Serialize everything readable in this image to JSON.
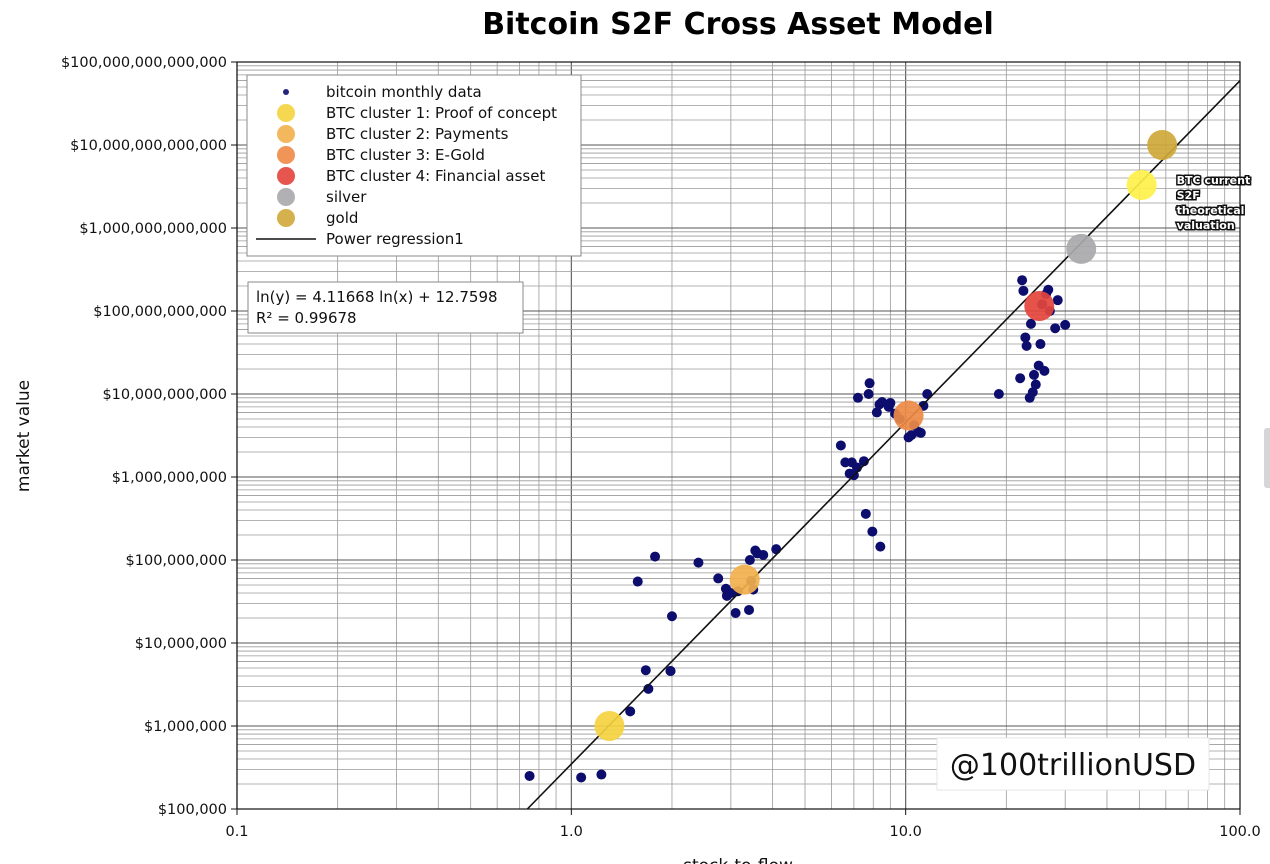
{
  "chart_data": {
    "type": "scatter",
    "title": "Bitcoin S2F Cross Asset Model",
    "xlabel": "stock-to-flow",
    "ylabel": "market value",
    "xscale": "log",
    "yscale": "log",
    "xlim": [
      0.1,
      100
    ],
    "ylim": [
      100000,
      100000000000000
    ],
    "grid": true,
    "x_ticks": [
      {
        "value": 0.1,
        "label": "0.1"
      },
      {
        "value": 1,
        "label": "1.0"
      },
      {
        "value": 10,
        "label": "10.0"
      },
      {
        "value": 100,
        "label": "100.0"
      }
    ],
    "y_ticks": [
      {
        "value": 100000,
        "label": "$100,000"
      },
      {
        "value": 1000000,
        "label": "$1,000,000"
      },
      {
        "value": 10000000,
        "label": "$10,000,000"
      },
      {
        "value": 100000000,
        "label": "$100,000,000"
      },
      {
        "value": 1000000000,
        "label": "$1,000,000,000"
      },
      {
        "value": 10000000000,
        "label": "$10,000,000,000"
      },
      {
        "value": 100000000000,
        "label": "$100,000,000,000"
      },
      {
        "value": 1000000000000,
        "label": "$1,000,000,000,000"
      },
      {
        "value": 10000000000000,
        "label": "$10,000,000,000,000"
      },
      {
        "value": 100000000000000,
        "label": "$100,000,000,000,000"
      }
    ],
    "legend_position": "top-left",
    "legend": [
      {
        "label": "bitcoin monthly data",
        "kind": "dot-small",
        "color": "#0d0d6e"
      },
      {
        "label": "BTC cluster 1: Proof of concept",
        "kind": "dot",
        "color": "#f5d33f"
      },
      {
        "label": "BTC cluster 2: Payments",
        "kind": "dot",
        "color": "#f2b04c"
      },
      {
        "label": "BTC cluster 3: E-Gold",
        "kind": "dot",
        "color": "#ee8a45"
      },
      {
        "label": "BTC cluster 4: Financial asset",
        "kind": "dot",
        "color": "#e3443c"
      },
      {
        "label": "silver",
        "kind": "dot",
        "color": "#a9a9ab"
      },
      {
        "label": "gold",
        "kind": "dot",
        "color": "#cfa83a"
      },
      {
        "label": "Power regression1",
        "kind": "line",
        "color": "#111111"
      }
    ],
    "equation": [
      "ln(y) = 4.11668 ln(x) + 12.7598",
      "R² = 0.99678"
    ],
    "regression": {
      "a": 4.11668,
      "b": 12.7598
    },
    "series": [
      {
        "name": "bitcoin monthly data",
        "color": "#0d0d6e",
        "x": [
          0.75,
          1.07,
          1.23,
          1.5,
          1.58,
          1.67,
          1.7,
          1.78,
          1.98,
          2.0,
          1.98,
          2.4,
          2.75,
          2.9,
          2.92,
          3.0,
          3.1,
          3.15,
          3.4,
          3.42,
          3.45,
          3.5,
          3.55,
          3.6,
          3.75,
          4.1,
          6.4,
          6.6,
          6.8,
          6.9,
          7.0,
          7.15,
          7.2,
          7.5,
          7.6,
          7.8,
          7.75,
          7.95,
          8.2,
          8.4,
          8.35,
          8.5,
          8.9,
          9.0,
          9.3,
          9.6,
          10.2,
          10.4,
          10.6,
          10.9,
          11.1,
          11.3,
          11.6,
          19.0,
          22.0,
          22.3,
          22.5,
          22.8,
          23.0,
          23.5,
          23.7,
          24.0,
          24.2,
          24.5,
          25.0,
          25.3,
          25.6,
          26.0,
          26.3,
          26.7,
          27.0,
          28.0,
          28.5,
          30.0
        ],
        "y": [
          250000.0,
          240000.0,
          260000.0,
          1500000.0,
          55000000.0,
          4700000.0,
          2800000.0,
          110000000.0,
          4600000.0,
          21000000.0,
          4600000.0,
          93000000.0,
          60000000.0,
          45000000.0,
          37000000.0,
          40000000.0,
          23000000.0,
          42000000.0,
          25000000.0,
          100000000.0,
          56000000.0,
          44000000.0,
          130000000.0,
          120000000.0,
          115000000.0,
          135000000.0,
          2400000000.0,
          1500000000.0,
          1100000000.0,
          1500000000.0,
          1050000000.0,
          1300000000.0,
          9000000000.0,
          1550000000.0,
          360000000.0,
          13500000000.0,
          10000000000.0,
          220000000.0,
          6000000000.0,
          145000000.0,
          7500000000.0,
          8000000000.0,
          7000000000.0,
          7800000000.0,
          5800000000.0,
          5000000000.0,
          3000000000.0,
          3200000000.0,
          4200000000.0,
          3500000000.0,
          3400000000.0,
          7200000000.0,
          10000000000.0,
          10000000000.0,
          15500000000.0,
          235000000000.0,
          175000000000.0,
          48000000000.0,
          38000000000.0,
          9000000000.0,
          70000000000.0,
          10500000000.0,
          17000000000.0,
          13000000000.0,
          22000000000.0,
          40000000000.0,
          120000000000.0,
          19000000000.0,
          160000000000.0,
          180000000000.0,
          100000000000.0,
          62000000000.0,
          135000000000.0,
          68000000000.0
        ]
      },
      {
        "name": "BTC cluster 1: Proof of concept",
        "color": "#f5d33f",
        "x": [
          1.3
        ],
        "y": [
          1000000.0
        ]
      },
      {
        "name": "BTC cluster 2: Payments",
        "color": "#f2b04c",
        "x": [
          3.3
        ],
        "y": [
          58000000.0
        ]
      },
      {
        "name": "BTC cluster 3: E-Gold",
        "color": "#ee8a45",
        "x": [
          10.2
        ],
        "y": [
          5500000000.0
        ]
      },
      {
        "name": "BTC cluster 4: Financial asset",
        "color": "#e3443c",
        "x": [
          25.1
        ],
        "y": [
          115000000000.0
        ]
      },
      {
        "name": "silver",
        "color": "#a9a9ab",
        "x": [
          33.5
        ],
        "y": [
          560000000000.0
        ]
      },
      {
        "name": "gold",
        "color": "#cfa83a",
        "x": [
          58.5
        ],
        "y": [
          10000000000000.0
        ]
      },
      {
        "name": "BTC current S2F theoretical valuation",
        "color": "#fff04a",
        "x": [
          50.8
        ],
        "y": [
          3300000000000.0
        ]
      }
    ],
    "annotations": [
      {
        "lines": [
          "BTC current",
          "S2F",
          "theoretical",
          "valuation"
        ],
        "x": 50.8,
        "y": 3300000000000.0
      }
    ],
    "watermark": "@100trillionUSD"
  }
}
